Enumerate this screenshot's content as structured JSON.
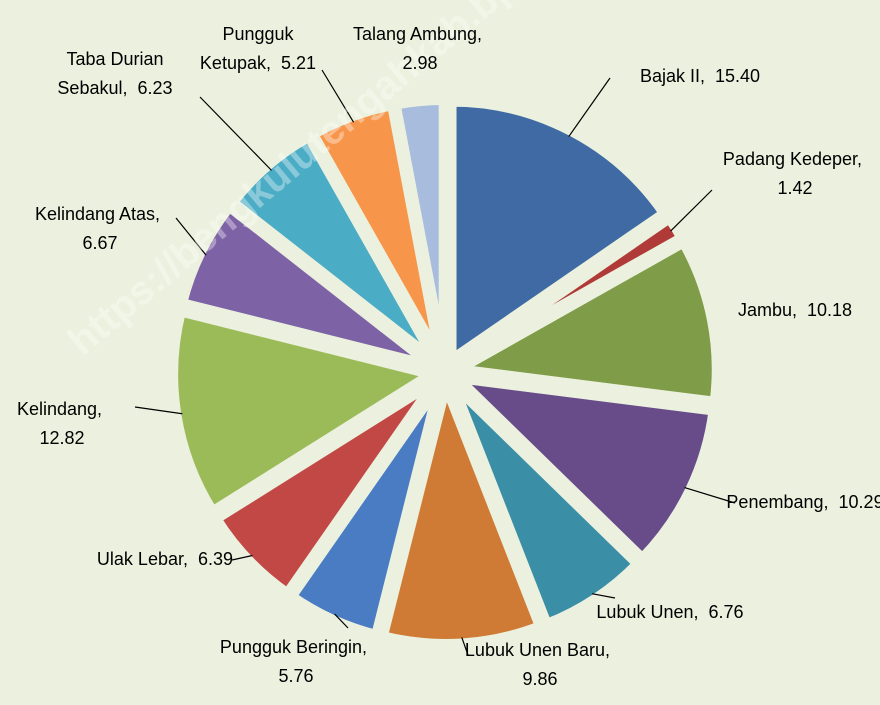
{
  "chart_data": {
    "type": "pie",
    "categories": [
      "Bajak II",
      "Padang Kedeper",
      "Jambu",
      "Penembang",
      "Lubuk Unen",
      "Lubuk Unen Baru",
      "Pungguk Beringin",
      "Ulak Lebar",
      "Kelindang",
      "Kelindang Atas",
      "Taba Durian Sebakul",
      "Pungguk Ketupak",
      "Talang Ambung"
    ],
    "values": [
      15.4,
      1.42,
      10.18,
      10.29,
      6.76,
      9.86,
      5.76,
      6.39,
      12.82,
      6.67,
      6.23,
      5.21,
      2.98
    ],
    "value_labels": [
      "15.40",
      "1.42",
      "10.18",
      "10.29",
      "6.76",
      "9.86",
      "5.76",
      "6.39",
      "12.82",
      "6.67",
      "6.23",
      "5.21",
      "2.98"
    ],
    "colors": [
      "#3f6aa3",
      "#b03a37",
      "#7f9c48",
      "#684c8a",
      "#3a8ea6",
      "#d07b35",
      "#4a7cc4",
      "#c24846",
      "#9bbb59",
      "#7e62a6",
      "#4aacc5",
      "#f7964a",
      "#a8bcdd"
    ],
    "label_separator": ",",
    "watermark": "https://bengkulutengahkab.bps.go.id"
  }
}
